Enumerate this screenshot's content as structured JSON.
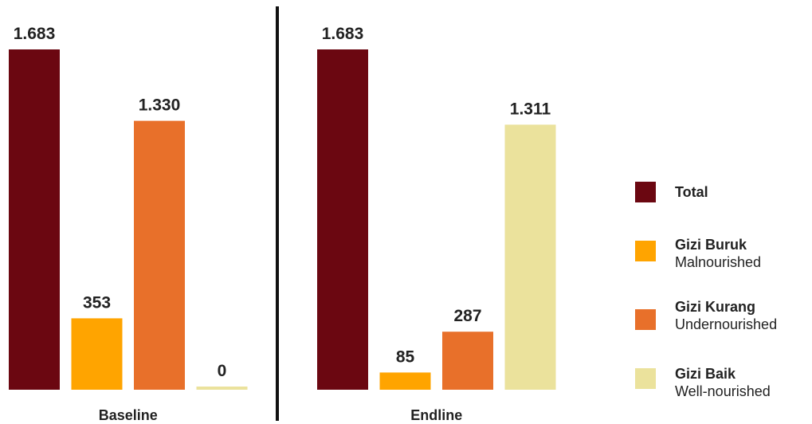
{
  "chart_data": {
    "type": "bar",
    "panels": [
      {
        "name": "Baseline",
        "values": [
          1683,
          353,
          1330,
          0
        ],
        "labels": [
          "1.683",
          "353",
          "1.330",
          "0"
        ]
      },
      {
        "name": "Endline",
        "values": [
          1683,
          85,
          287,
          1311
        ],
        "labels": [
          "1.683",
          "85",
          "287",
          "1.311"
        ]
      }
    ],
    "series": [
      {
        "name": "Total",
        "sub": "",
        "color": "#6b0711"
      },
      {
        "name": "Gizi Buruk",
        "sub": "Malnourished",
        "color": "#ffa400"
      },
      {
        "name": "Gizi Kurang",
        "sub": "Undernourished",
        "color": "#e8702a"
      },
      {
        "name": "Gizi Baik",
        "sub": "Well-nourished",
        "color": "#ebe29c"
      }
    ],
    "ylim": [
      0,
      1683
    ],
    "legend_position": "right"
  }
}
